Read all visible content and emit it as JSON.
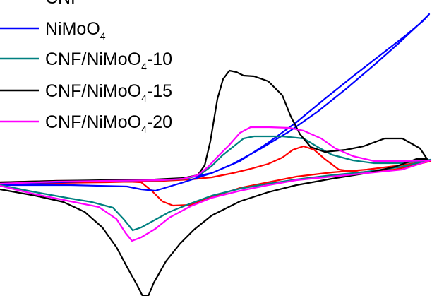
{
  "chart_data": {
    "type": "line",
    "title": "",
    "xlabel": "",
    "ylabel": "",
    "grid": false,
    "legend_position": "top-left",
    "xlim": [
      0,
      612
    ],
    "ylim": [
      -419,
      0
    ],
    "series": [
      {
        "name": "CNF",
        "legend": {
          "prefix": "CNF",
          "sub": "",
          "suffix": ""
        },
        "color": "#ff0000",
        "points": [
          [
            0,
            -258
          ],
          [
            80,
            -256
          ],
          [
            160,
            -256
          ],
          [
            200,
            -258
          ],
          [
            215,
            -270
          ],
          [
            230,
            -285
          ],
          [
            245,
            -291
          ],
          [
            270,
            -290
          ],
          [
            300,
            -279
          ],
          [
            340,
            -266
          ],
          [
            380,
            -258
          ],
          [
            420,
            -250
          ],
          [
            470,
            -244
          ],
          [
            520,
            -240
          ],
          [
            560,
            -235
          ],
          [
            610,
            -228
          ],
          [
            560,
            -240
          ],
          [
            510,
            -244
          ],
          [
            480,
            -240
          ],
          [
            460,
            -225
          ],
          [
            445,
            -212
          ],
          [
            430,
            -207
          ],
          [
            415,
            -212
          ],
          [
            400,
            -223
          ],
          [
            380,
            -232
          ],
          [
            355,
            -239
          ],
          [
            330,
            -245
          ],
          [
            300,
            -251
          ],
          [
            270,
            -254
          ],
          [
            230,
            -256
          ],
          [
            150,
            -258
          ],
          [
            80,
            -259
          ],
          [
            0,
            -261
          ]
        ]
      },
      {
        "name": "NiMoO4",
        "legend": {
          "prefix": "NiMoO",
          "sub": "4",
          "suffix": ""
        },
        "color": "#0000ff",
        "points": [
          [
            0,
            -262
          ],
          [
            100,
            -262
          ],
          [
            180,
            -264
          ],
          [
            200,
            -268
          ],
          [
            220,
            -270
          ],
          [
            260,
            -258
          ],
          [
            300,
            -245
          ],
          [
            340,
            -228
          ],
          [
            380,
            -202
          ],
          [
            420,
            -173
          ],
          [
            460,
            -140
          ],
          [
            500,
            -108
          ],
          [
            540,
            -77
          ],
          [
            575,
            -50
          ],
          [
            600,
            -29
          ],
          [
            608,
            -20
          ],
          [
            595,
            -33
          ],
          [
            565,
            -61
          ],
          [
            530,
            -92
          ],
          [
            490,
            -126
          ],
          [
            450,
            -158
          ],
          [
            410,
            -186
          ],
          [
            370,
            -210
          ],
          [
            330,
            -232
          ],
          [
            300,
            -245
          ],
          [
            260,
            -253
          ],
          [
            220,
            -255
          ],
          [
            150,
            -256
          ],
          [
            80,
            -258
          ],
          [
            0,
            -260
          ]
        ]
      },
      {
        "name": "CNF/NiMoO4-10",
        "legend": {
          "prefix": "CNF/NiMoO",
          "sub": "4",
          "suffix": "-10"
        },
        "color": "#008080",
        "points": [
          [
            0,
            -262
          ],
          [
            50,
            -272
          ],
          [
            100,
            -281
          ],
          [
            130,
            -286
          ],
          [
            160,
            -294
          ],
          [
            175,
            -310
          ],
          [
            188,
            -326
          ],
          [
            200,
            -322
          ],
          [
            220,
            -311
          ],
          [
            240,
            -300
          ],
          [
            270,
            -288
          ],
          [
            300,
            -277
          ],
          [
            340,
            -267
          ],
          [
            380,
            -260
          ],
          [
            420,
            -254
          ],
          [
            470,
            -248
          ],
          [
            520,
            -243
          ],
          [
            570,
            -236
          ],
          [
            610,
            -226
          ],
          [
            570,
            -231
          ],
          [
            530,
            -231
          ],
          [
            500,
            -227
          ],
          [
            470,
            -219
          ],
          [
            450,
            -208
          ],
          [
            430,
            -196
          ],
          [
            400,
            -193
          ],
          [
            360,
            -193
          ],
          [
            345,
            -196
          ],
          [
            330,
            -208
          ],
          [
            315,
            -220
          ],
          [
            300,
            -235
          ],
          [
            285,
            -246
          ],
          [
            265,
            -253
          ],
          [
            230,
            -255
          ],
          [
            150,
            -256
          ],
          [
            80,
            -257
          ],
          [
            0,
            -260
          ]
        ]
      },
      {
        "name": "CNF/NiMoO4-15",
        "legend": {
          "prefix": "CNF/NiMoO",
          "sub": "4",
          "suffix": "-15"
        },
        "color": "#000000",
        "points": [
          [
            0,
            -268
          ],
          [
            50,
            -277
          ],
          [
            90,
            -286
          ],
          [
            120,
            -300
          ],
          [
            145,
            -322
          ],
          [
            165,
            -350
          ],
          [
            180,
            -378
          ],
          [
            195,
            -405
          ],
          [
            202,
            -419
          ],
          [
            210,
            -419
          ],
          [
            218,
            -400
          ],
          [
            235,
            -370
          ],
          [
            255,
            -345
          ],
          [
            275,
            -325
          ],
          [
            300,
            -305
          ],
          [
            340,
            -285
          ],
          [
            380,
            -272
          ],
          [
            420,
            -262
          ],
          [
            470,
            -253
          ],
          [
            520,
            -245
          ],
          [
            560,
            -236
          ],
          [
            590,
            -225
          ],
          [
            605,
            -225
          ],
          [
            595,
            -210
          ],
          [
            570,
            -196
          ],
          [
            545,
            -196
          ],
          [
            515,
            -207
          ],
          [
            490,
            -212
          ],
          [
            460,
            -215
          ],
          [
            440,
            -208
          ],
          [
            425,
            -190
          ],
          [
            412,
            -165
          ],
          [
            400,
            -135
          ],
          [
            380,
            -115
          ],
          [
            360,
            -108
          ],
          [
            345,
            -107
          ],
          [
            335,
            -102
          ],
          [
            325,
            -100
          ],
          [
            316,
            -112
          ],
          [
            308,
            -140
          ],
          [
            298,
            -200
          ],
          [
            290,
            -234
          ],
          [
            280,
            -248
          ],
          [
            260,
            -252
          ],
          [
            220,
            -254
          ],
          [
            150,
            -255
          ],
          [
            80,
            -256
          ],
          [
            0,
            -258
          ]
        ]
      },
      {
        "name": "CNF/NiMoO4-20",
        "legend": {
          "prefix": "CNF/NiMoO",
          "sub": "4",
          "suffix": "-20"
        },
        "color": "#ff00ff",
        "points": [
          [
            0,
            -263
          ],
          [
            50,
            -275
          ],
          [
            100,
            -285
          ],
          [
            140,
            -293
          ],
          [
            165,
            -310
          ],
          [
            178,
            -330
          ],
          [
            187,
            -341
          ],
          [
            200,
            -336
          ],
          [
            220,
            -324
          ],
          [
            240,
            -308
          ],
          [
            270,
            -292
          ],
          [
            300,
            -280
          ],
          [
            340,
            -270
          ],
          [
            380,
            -262
          ],
          [
            420,
            -255
          ],
          [
            470,
            -250
          ],
          [
            520,
            -245
          ],
          [
            570,
            -240
          ],
          [
            610,
            -227
          ],
          [
            570,
            -228
          ],
          [
            530,
            -228
          ],
          [
            500,
            -221
          ],
          [
            475,
            -210
          ],
          [
            455,
            -196
          ],
          [
            430,
            -185
          ],
          [
            410,
            -181
          ],
          [
            380,
            -180
          ],
          [
            355,
            -180
          ],
          [
            340,
            -188
          ],
          [
            325,
            -205
          ],
          [
            310,
            -220
          ],
          [
            295,
            -236
          ],
          [
            280,
            -248
          ],
          [
            260,
            -253
          ],
          [
            230,
            -255
          ],
          [
            150,
            -256
          ],
          [
            80,
            -257
          ],
          [
            0,
            -260
          ]
        ]
      }
    ]
  }
}
